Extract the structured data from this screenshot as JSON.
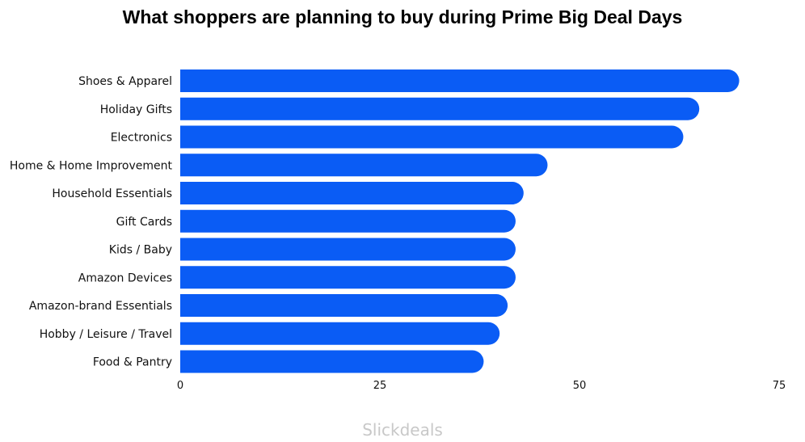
{
  "chart_data": {
    "type": "bar",
    "orientation": "horizontal",
    "title": "What shoppers are planning to buy during Prime Big Deal Days",
    "categories": [
      "Shoes & Apparel",
      "Holiday Gifts",
      "Electronics",
      "Home & Home Improvement",
      "Household Essentials",
      "Gift Cards",
      "Kids / Baby",
      "Amazon Devices",
      "Amazon-brand Essentials",
      "Hobby / Leisure / Travel",
      "Food & Pantry"
    ],
    "values": [
      70,
      65,
      63,
      46,
      43,
      42,
      42,
      42,
      41,
      40,
      38
    ],
    "xlim": [
      0,
      75
    ],
    "xticks": [
      "0",
      "25",
      "50",
      "75"
    ],
    "grid": false,
    "bar_color": "#0a5cf5"
  },
  "source": "Slickdeals"
}
